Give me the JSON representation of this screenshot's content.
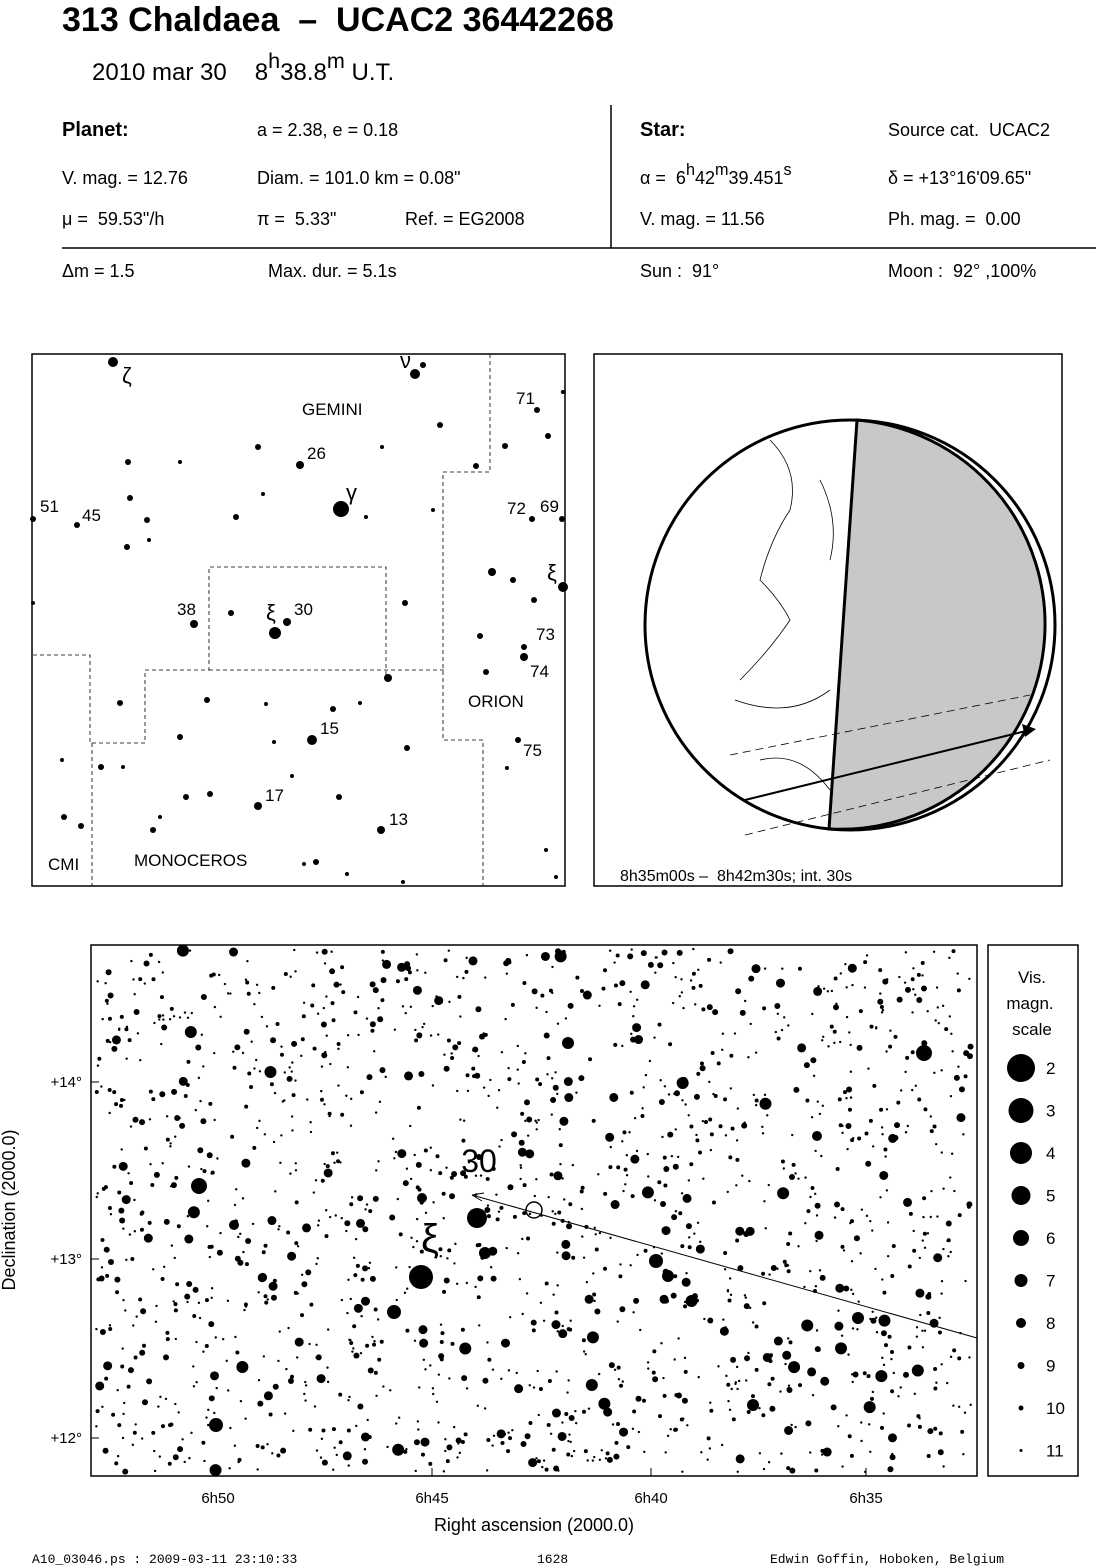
{
  "header": {
    "title": "313 Chaldaea  –  UCAC2 36442268",
    "date": "2010 mar 30",
    "time_h": "8",
    "h": "h",
    "time_m": "38.8",
    "m": "m",
    "ut": " U.T."
  },
  "planet": {
    "label": "Planet:",
    "orbit": "a = 2.38, e = 0.18",
    "vmag": "V. mag. = 12.76",
    "diam": "Diam. = 101.0 km = 0.08\"",
    "mu": "μ =  59.53\"/h",
    "pi": "π =  5.33\"",
    "ref": "Ref. = EG2008"
  },
  "star": {
    "label": "Star:",
    "source": "Source cat.  UCAC2",
    "alpha": [
      "α =  6",
      "h",
      "42",
      "m",
      "39.451",
      "s"
    ],
    "delta": "δ = +13°16'09.65\"",
    "vmag": "V. mag. = 11.56",
    "phmag": "Ph. mag. =  0.00"
  },
  "event": {
    "dm": "Δm = 1.5",
    "maxdur": "Max. dur. = 5.1s",
    "sun": "Sun :  91°",
    "moon": "Moon :  92° ,100%"
  },
  "finder": {
    "labels": [
      "ζ",
      "ν",
      "GEMINI",
      "71",
      "26",
      "γ",
      "51",
      "45",
      "72",
      "69",
      "ξ",
      "38",
      "ξ",
      "30",
      "73",
      "74",
      "ORION",
      "15",
      "75",
      "17",
      "13",
      "CMI",
      "MONOCEROS"
    ]
  },
  "globe": {
    "caption": "8h35m00s –  8h42m30s; int. 30s"
  },
  "detail": {
    "y_labels": [
      "+14°",
      "+13°",
      "+12°"
    ],
    "x_labels": [
      "6h50",
      "6h45",
      "6h40",
      "6h35"
    ],
    "x_title": "Right ascension (2000.0)",
    "y_title": "Declination (2000.0)",
    "star_30": "30",
    "star_xi": "ξ",
    "legend": {
      "title": [
        "Vis.",
        "magn.",
        "scale"
      ],
      "mags": [
        "2",
        "3",
        "4",
        "5",
        "6",
        "7",
        "8",
        "9",
        "10",
        "11"
      ]
    }
  },
  "footer": {
    "file": "A10_03046.ps : 2009-03-11 23:10:33",
    "number": "1628",
    "author": "Edwin Goffin, Hoboken, Belgium"
  }
}
